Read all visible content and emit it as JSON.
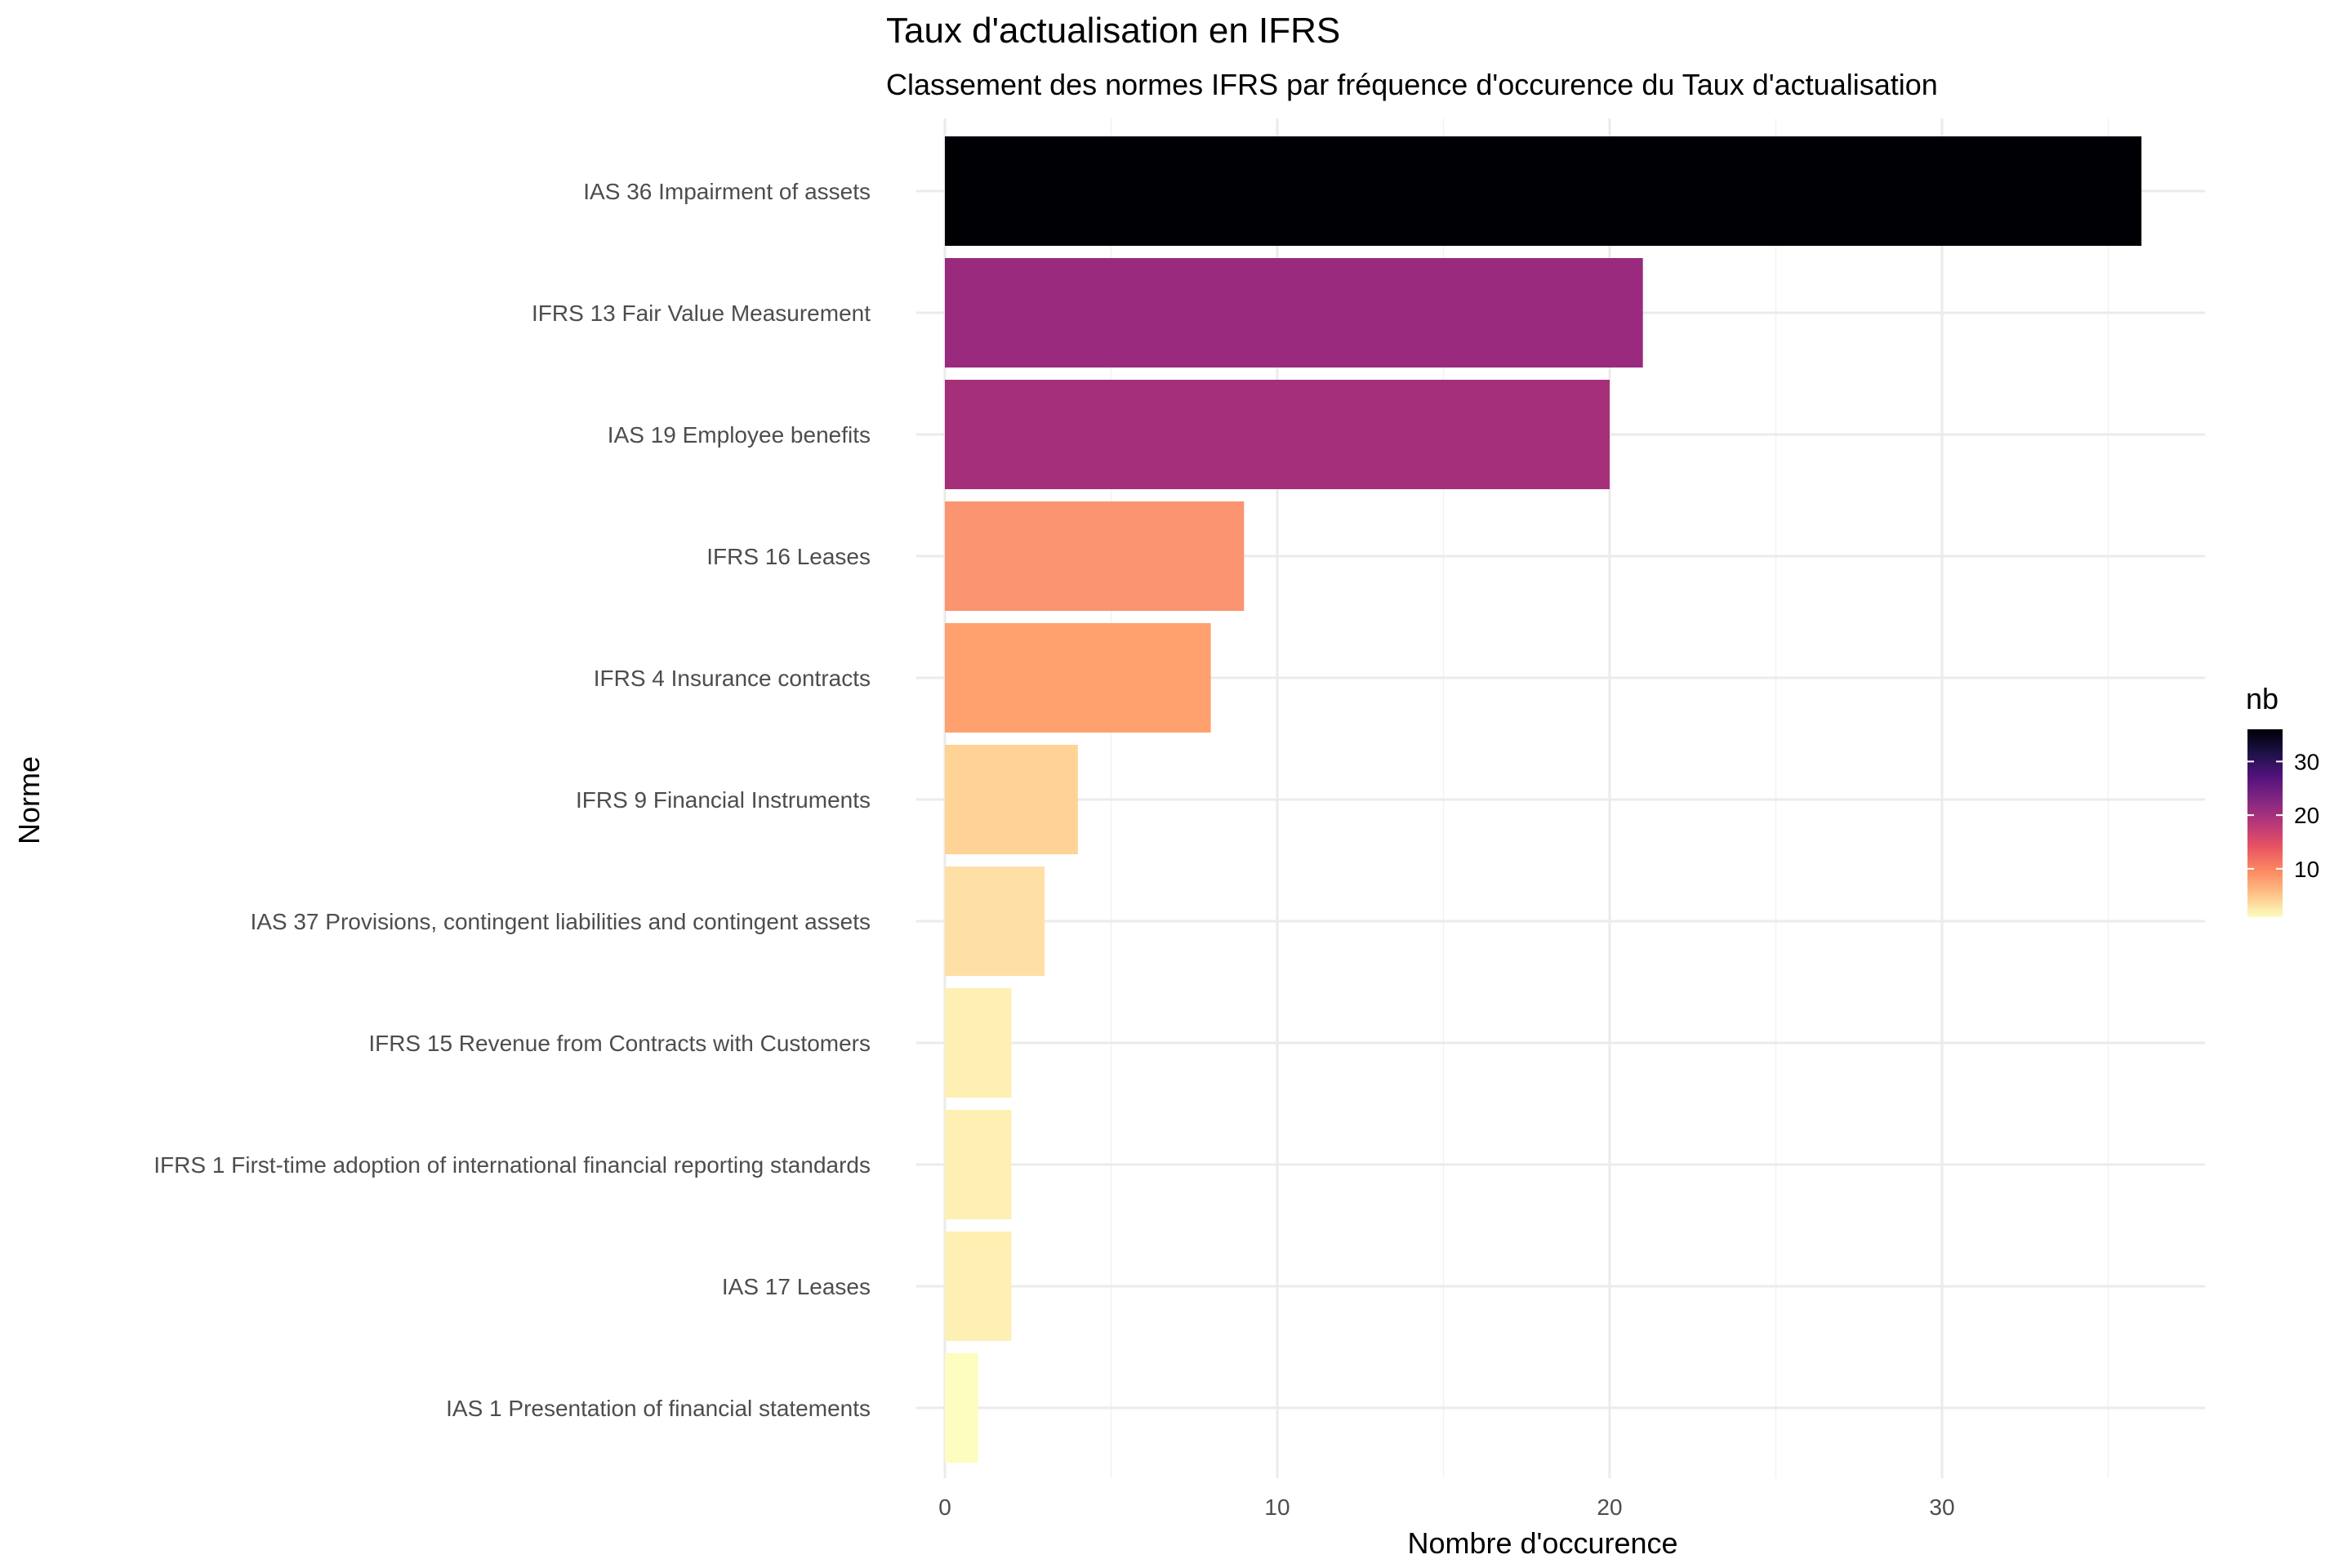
{
  "chart_data": {
    "type": "bar",
    "orientation": "horizontal",
    "title": "Taux d'actualisation en IFRS",
    "subtitle": "Classement des normes IFRS par fréquence d'occurence du Taux d'actualisation",
    "xlabel": "Nombre d'occurence",
    "ylabel": "Norme",
    "xlim": [
      0,
      37.7
    ],
    "xticks": [
      0,
      10,
      20,
      30
    ],
    "xtick_labels": [
      "0",
      "10",
      "20",
      "30"
    ],
    "grid": true,
    "categories": [
      "IAS 36 Impairment of assets",
      "IFRS 13 Fair Value Measurement",
      "IAS 19 Employee benefits",
      "IFRS 16 Leases",
      "IFRS 4 Insurance contracts",
      "IFRS 9 Financial Instruments",
      "IAS 37 Provisions, contingent liabilities and contingent assets",
      "IFRS 15 Revenue from Contracts with Customers",
      "IFRS 1 First-time adoption of international financial reporting standards",
      "IAS 17 Leases",
      "IAS 1 Presentation of financial statements"
    ],
    "values": [
      36,
      21,
      20,
      9,
      8,
      4,
      3,
      2,
      2,
      2,
      1
    ],
    "colors": [
      "#000004",
      "#992a7e",
      "#a53079",
      "#fa9471",
      "#fea16e",
      "#fed395",
      "#fee0a6",
      "#feefb3",
      "#feefb3",
      "#feefb3",
      "#fcfdbf"
    ],
    "legend": {
      "title": "nb",
      "position": "right",
      "ticks": [
        10,
        20,
        30
      ],
      "tick_labels": [
        "10",
        "20",
        "30"
      ],
      "range": [
        1,
        36
      ],
      "colormap": "magma-reversed",
      "gradient": [
        "#fcfdbf",
        "#fec287",
        "#fb8861",
        "#e85362",
        "#b73779",
        "#822681",
        "#51127c",
        "#1d1147",
        "#000004"
      ]
    }
  }
}
